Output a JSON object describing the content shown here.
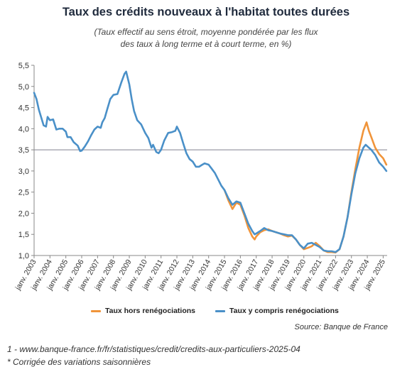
{
  "chart_data": {
    "type": "line",
    "title": "Taux des crédits nouveaux à l'habitat toutes durées",
    "subtitle": [
      "(Taux effectif au sens étroit, moyenne pondérée par les flux",
      "des taux à long terme et à court terme, en %)"
    ],
    "ylim": [
      1.0,
      5.5
    ],
    "yticks": [
      "1,0",
      "1,5",
      "2,0",
      "2,5",
      "3,0",
      "3,5",
      "4,0",
      "4,5",
      "5,0",
      "5,5"
    ],
    "xlim": [
      2003.0,
      2025.25
    ],
    "xticks": [
      "janv. 2003",
      "janv. 2004",
      "janv. 2005",
      "janv. 2006",
      "janv. 2007",
      "janv. 2008",
      "janv. 2009",
      "janv. 2010",
      "janv. 2011",
      "janv. 2012",
      "janv. 2013",
      "janv. 2014",
      "janv. 2015",
      "janv. 2016",
      "janv. 2017",
      "janv. 2018",
      "janv. 2019",
      "janv. 2020",
      "janv. 2021",
      "janv. 2022",
      "janv. 2023",
      "janv. 2024",
      "janv. 2025"
    ],
    "reference_line": 3.5,
    "series": [
      {
        "name": "Taux hors renégociations",
        "color": "#f0943a",
        "points": [
          [
            2015.0,
            2.55
          ],
          [
            2015.25,
            2.3
          ],
          [
            2015.5,
            2.1
          ],
          [
            2015.75,
            2.25
          ],
          [
            2016.0,
            2.2
          ],
          [
            2016.25,
            1.95
          ],
          [
            2016.5,
            1.65
          ],
          [
            2016.75,
            1.45
          ],
          [
            2016.9,
            1.38
          ],
          [
            2017.0,
            1.45
          ],
          [
            2017.25,
            1.55
          ],
          [
            2017.5,
            1.6
          ],
          [
            2017.75,
            1.62
          ],
          [
            2018.0,
            1.58
          ],
          [
            2018.25,
            1.55
          ],
          [
            2018.5,
            1.52
          ],
          [
            2018.75,
            1.48
          ],
          [
            2019.0,
            1.45
          ],
          [
            2019.25,
            1.47
          ],
          [
            2019.5,
            1.38
          ],
          [
            2019.75,
            1.25
          ],
          [
            2020.0,
            1.15
          ],
          [
            2020.25,
            1.18
          ],
          [
            2020.5,
            1.22
          ],
          [
            2020.75,
            1.3
          ],
          [
            2021.0,
            1.22
          ],
          [
            2021.25,
            1.12
          ],
          [
            2021.5,
            1.08
          ],
          [
            2021.75,
            1.08
          ],
          [
            2022.0,
            1.07
          ],
          [
            2022.25,
            1.15
          ],
          [
            2022.5,
            1.45
          ],
          [
            2022.75,
            1.9
          ],
          [
            2023.0,
            2.5
          ],
          [
            2023.25,
            3.05
          ],
          [
            2023.5,
            3.55
          ],
          [
            2023.75,
            3.95
          ],
          [
            2023.95,
            4.15
          ],
          [
            2024.1,
            3.95
          ],
          [
            2024.25,
            3.8
          ],
          [
            2024.5,
            3.55
          ],
          [
            2024.75,
            3.4
          ],
          [
            2025.0,
            3.3
          ],
          [
            2025.2,
            3.15
          ]
        ]
      },
      {
        "name": "Taux y compris renégociations",
        "color": "#4a90c8",
        "points": [
          [
            2003.0,
            4.85
          ],
          [
            2003.15,
            4.7
          ],
          [
            2003.3,
            4.45
          ],
          [
            2003.5,
            4.2
          ],
          [
            2003.6,
            4.08
          ],
          [
            2003.75,
            4.05
          ],
          [
            2003.85,
            4.28
          ],
          [
            2004.0,
            4.2
          ],
          [
            2004.2,
            4.22
          ],
          [
            2004.4,
            3.98
          ],
          [
            2004.6,
            4.0
          ],
          [
            2004.8,
            4.0
          ],
          [
            2005.0,
            3.93
          ],
          [
            2005.1,
            3.8
          ],
          [
            2005.3,
            3.8
          ],
          [
            2005.5,
            3.68
          ],
          [
            2005.75,
            3.6
          ],
          [
            2005.9,
            3.47
          ],
          [
            2006.0,
            3.48
          ],
          [
            2006.2,
            3.58
          ],
          [
            2006.4,
            3.7
          ],
          [
            2006.6,
            3.85
          ],
          [
            2006.8,
            3.98
          ],
          [
            2007.0,
            4.05
          ],
          [
            2007.2,
            4.02
          ],
          [
            2007.3,
            4.15
          ],
          [
            2007.45,
            4.25
          ],
          [
            2007.6,
            4.45
          ],
          [
            2007.8,
            4.7
          ],
          [
            2008.0,
            4.8
          ],
          [
            2008.25,
            4.82
          ],
          [
            2008.5,
            5.1
          ],
          [
            2008.7,
            5.3
          ],
          [
            2008.8,
            5.35
          ],
          [
            2009.0,
            5.05
          ],
          [
            2009.15,
            4.7
          ],
          [
            2009.3,
            4.42
          ],
          [
            2009.5,
            4.2
          ],
          [
            2009.75,
            4.1
          ],
          [
            2010.0,
            3.9
          ],
          [
            2010.2,
            3.78
          ],
          [
            2010.4,
            3.55
          ],
          [
            2010.5,
            3.62
          ],
          [
            2010.7,
            3.45
          ],
          [
            2010.85,
            3.42
          ],
          [
            2011.0,
            3.5
          ],
          [
            2011.2,
            3.72
          ],
          [
            2011.45,
            3.9
          ],
          [
            2011.7,
            3.92
          ],
          [
            2011.9,
            3.95
          ],
          [
            2012.0,
            4.05
          ],
          [
            2012.2,
            3.9
          ],
          [
            2012.4,
            3.65
          ],
          [
            2012.6,
            3.42
          ],
          [
            2012.8,
            3.28
          ],
          [
            2013.0,
            3.22
          ],
          [
            2013.2,
            3.1
          ],
          [
            2013.4,
            3.1
          ],
          [
            2013.6,
            3.15
          ],
          [
            2013.75,
            3.18
          ],
          [
            2014.0,
            3.15
          ],
          [
            2014.2,
            3.05
          ],
          [
            2014.4,
            2.95
          ],
          [
            2014.6,
            2.8
          ],
          [
            2014.8,
            2.65
          ],
          [
            2015.0,
            2.55
          ],
          [
            2015.25,
            2.35
          ],
          [
            2015.5,
            2.2
          ],
          [
            2015.75,
            2.28
          ],
          [
            2016.0,
            2.25
          ],
          [
            2016.25,
            2.0
          ],
          [
            2016.5,
            1.75
          ],
          [
            2016.75,
            1.58
          ],
          [
            2016.9,
            1.5
          ],
          [
            2017.0,
            1.52
          ],
          [
            2017.25,
            1.58
          ],
          [
            2017.5,
            1.65
          ],
          [
            2017.75,
            1.6
          ],
          [
            2018.0,
            1.58
          ],
          [
            2018.25,
            1.55
          ],
          [
            2018.5,
            1.52
          ],
          [
            2018.75,
            1.5
          ],
          [
            2019.0,
            1.48
          ],
          [
            2019.25,
            1.48
          ],
          [
            2019.5,
            1.38
          ],
          [
            2019.75,
            1.25
          ],
          [
            2020.0,
            1.17
          ],
          [
            2020.25,
            1.28
          ],
          [
            2020.5,
            1.3
          ],
          [
            2020.75,
            1.25
          ],
          [
            2021.0,
            1.2
          ],
          [
            2021.25,
            1.12
          ],
          [
            2021.5,
            1.1
          ],
          [
            2021.75,
            1.1
          ],
          [
            2022.0,
            1.08
          ],
          [
            2022.25,
            1.15
          ],
          [
            2022.5,
            1.45
          ],
          [
            2022.75,
            1.9
          ],
          [
            2023.0,
            2.45
          ],
          [
            2023.25,
            2.95
          ],
          [
            2023.5,
            3.3
          ],
          [
            2023.75,
            3.55
          ],
          [
            2023.9,
            3.62
          ],
          [
            2024.1,
            3.55
          ],
          [
            2024.25,
            3.5
          ],
          [
            2024.5,
            3.38
          ],
          [
            2024.75,
            3.2
          ],
          [
            2025.0,
            3.1
          ],
          [
            2025.2,
            3.0
          ]
        ]
      }
    ]
  },
  "legend": {
    "items": [
      "Taux hors renégociations",
      "Taux y compris renégociations"
    ]
  },
  "source": "Source: Banque de France",
  "footnotes": [
    "1 - www.banque-france.fr/fr/statistiques/credit/credits-aux-particuliers-2025-04",
    "* Corrigée des variations saisonnières"
  ]
}
